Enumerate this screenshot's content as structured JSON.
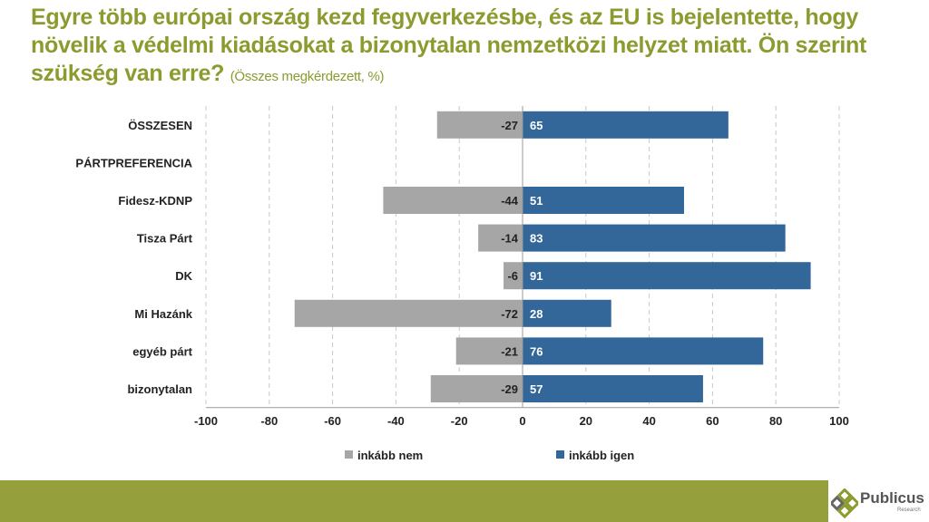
{
  "title": {
    "main": "Egyre több európai ország kezd fegyverkezésbe, és az EU is bejelentette, hogy növelik a védelmi kiadásokat a bizonytalan nemzetközi helyzet miatt. Ön szerint szükség van erre?",
    "subtitle": "(Összes megkérdezett, %)"
  },
  "chart_data": {
    "type": "bar",
    "orientation": "horizontal-diverging",
    "categories": [
      "ÖSSZESEN",
      "PÁRTPREFERENCIA",
      "Fidesz-KDNP",
      "Tisza Párt",
      "DK",
      "Mi Hazánk",
      "egyéb párt",
      "bizonytalan"
    ],
    "series": [
      {
        "name": "inkább nem",
        "color": "#a6a6a6",
        "values": [
          -27,
          null,
          -44,
          -14,
          -6,
          -72,
          -21,
          -29
        ]
      },
      {
        "name": "inkább igen",
        "color": "#336699",
        "values": [
          65,
          null,
          51,
          83,
          91,
          28,
          76,
          57
        ]
      }
    ],
    "xlim": [
      -100,
      100
    ],
    "xticks": [
      -100,
      -80,
      -60,
      -40,
      -20,
      0,
      20,
      40,
      60,
      80,
      100
    ],
    "grid": "vertical dashed",
    "legend": "bottom"
  },
  "logo": {
    "name": "Publicus",
    "tagline": "Research"
  }
}
